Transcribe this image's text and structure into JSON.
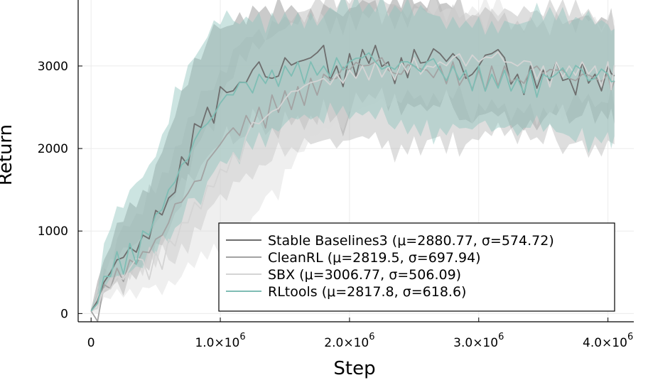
{
  "chart_data": {
    "type": "line",
    "xlabel": "Step",
    "ylabel": "Return",
    "x_ticks": [
      {
        "value": 0,
        "label": "0",
        "exp": ""
      },
      {
        "value": 1000000,
        "label": "1.0×10",
        "exp": "6"
      },
      {
        "value": 2000000,
        "label": "2.0×10",
        "exp": "6"
      },
      {
        "value": 3000000,
        "label": "3.0×10",
        "exp": "6"
      },
      {
        "value": 4000000,
        "label": "4.0×10",
        "exp": "6"
      }
    ],
    "y_ticks": [
      0,
      1000,
      2000,
      3000
    ],
    "xlim": [
      -100000,
      4200000
    ],
    "ylim": [
      -100,
      3800
    ],
    "grid": true,
    "legend_position": "bottom-right",
    "series": [
      {
        "name": "Stable Baselines3 (μ=2880.77, σ=574.72)",
        "color": "#6e6e6e",
        "band_color": "#8a8a8a",
        "x": [
          0,
          100000,
          200000,
          300000,
          400000,
          500000,
          600000,
          700000,
          800000,
          900000,
          1000000,
          1100000,
          1200000,
          1300000,
          1400000,
          1500000,
          1600000,
          1700000,
          1800000,
          1900000,
          2000000,
          2100000,
          2200000,
          2300000,
          2400000,
          2500000,
          2600000,
          2700000,
          2800000,
          2900000,
          3000000,
          3100000,
          3200000,
          3300000,
          3400000,
          3500000,
          3600000,
          3700000,
          3800000,
          3900000,
          4000000,
          4050000
        ],
        "values": [
          30,
          380,
          650,
          800,
          950,
          1250,
          1400,
          1900,
          2300,
          2500,
          2750,
          2700,
          2800,
          3050,
          2850,
          3100,
          3050,
          3100,
          3250,
          3000,
          3150,
          3200,
          3250,
          3050,
          3100,
          3200,
          3050,
          3150,
          3150,
          2850,
          3000,
          3150,
          3100,
          2900,
          3000,
          2950,
          3050,
          2850,
          3050,
          2900,
          3000,
          2880
        ],
        "band": [
          [
            20,
            50
          ],
          [
            250,
            650
          ],
          [
            400,
            1100
          ],
          [
            500,
            1350
          ],
          [
            600,
            1500
          ],
          [
            850,
            1800
          ],
          [
            1000,
            2200
          ],
          [
            1300,
            2700
          ],
          [
            1600,
            3100
          ],
          [
            1900,
            3300
          ],
          [
            2050,
            3450
          ],
          [
            2050,
            3500
          ],
          [
            2150,
            3500
          ],
          [
            2350,
            3650
          ],
          [
            2250,
            3600
          ],
          [
            2450,
            3650
          ],
          [
            2400,
            3650
          ],
          [
            2400,
            3700
          ],
          [
            2600,
            3750
          ],
          [
            2400,
            3650
          ],
          [
            2400,
            3700
          ],
          [
            2550,
            3800
          ],
          [
            2600,
            3800
          ],
          [
            2450,
            3700
          ],
          [
            2400,
            3700
          ],
          [
            2500,
            3750
          ],
          [
            2450,
            3700
          ],
          [
            2500,
            3750
          ],
          [
            2500,
            3700
          ],
          [
            2350,
            3550
          ],
          [
            2400,
            3600
          ],
          [
            2450,
            3650
          ],
          [
            2450,
            3650
          ],
          [
            2300,
            3550
          ],
          [
            2350,
            3600
          ],
          [
            2350,
            3550
          ],
          [
            2400,
            3650
          ],
          [
            2300,
            3550
          ],
          [
            2400,
            3600
          ],
          [
            2300,
            3500
          ],
          [
            2350,
            3550
          ],
          [
            2300,
            3450
          ]
        ]
      },
      {
        "name": "CleanRL (μ=2819.5, σ=697.94)",
        "color": "#a3a3a3",
        "band_color": "#b5b5b5",
        "x": [
          0,
          100000,
          200000,
          300000,
          400000,
          500000,
          600000,
          700000,
          800000,
          900000,
          1000000,
          1100000,
          1200000,
          1300000,
          1400000,
          1500000,
          1600000,
          1700000,
          1800000,
          1900000,
          2000000,
          2100000,
          2200000,
          2300000,
          2400000,
          2500000,
          2600000,
          2700000,
          2800000,
          2900000,
          3000000,
          3100000,
          3200000,
          3300000,
          3400000,
          3500000,
          3600000,
          3700000,
          3800000,
          3900000,
          4000000,
          4050000
        ],
        "values": [
          30,
          350,
          550,
          650,
          750,
          900,
          1100,
          1350,
          1600,
          1850,
          2050,
          2250,
          2400,
          2500,
          2650,
          2700,
          2750,
          2850,
          2900,
          2850,
          2950,
          3000,
          3050,
          2950,
          2900,
          3000,
          2950,
          3000,
          3050,
          2900,
          2950,
          3000,
          3000,
          2850,
          2950,
          2900,
          2950,
          2850,
          2900,
          2850,
          2900,
          2820
        ],
        "band": [
          [
            20,
            50
          ],
          [
            250,
            550
          ],
          [
            380,
            900
          ],
          [
            400,
            1050
          ],
          [
            450,
            1200
          ],
          [
            550,
            1450
          ],
          [
            650,
            1700
          ],
          [
            850,
            2050
          ],
          [
            1050,
            2400
          ],
          [
            1250,
            2700
          ],
          [
            1450,
            2950
          ],
          [
            1600,
            3200
          ],
          [
            1700,
            3350
          ],
          [
            1800,
            3450
          ],
          [
            1850,
            3550
          ],
          [
            1900,
            3600
          ],
          [
            1950,
            3650
          ],
          [
            2050,
            3700
          ],
          [
            2100,
            3750
          ],
          [
            2000,
            3700
          ],
          [
            2100,
            3750
          ],
          [
            2150,
            3800
          ],
          [
            2200,
            3800
          ],
          [
            2100,
            3750
          ],
          [
            2050,
            3700
          ],
          [
            2150,
            3750
          ],
          [
            2100,
            3700
          ],
          [
            2150,
            3750
          ],
          [
            2200,
            3750
          ],
          [
            2050,
            3650
          ],
          [
            2100,
            3650
          ],
          [
            2150,
            3700
          ],
          [
            2150,
            3700
          ],
          [
            2050,
            3600
          ],
          [
            2100,
            3650
          ],
          [
            2050,
            3600
          ],
          [
            2100,
            3650
          ],
          [
            2050,
            3600
          ],
          [
            2100,
            3600
          ],
          [
            2050,
            3550
          ],
          [
            2100,
            3550
          ],
          [
            2050,
            3500
          ]
        ]
      },
      {
        "name": "SBX (μ=3006.77, σ=506.09)",
        "color": "#d4d4d4",
        "band_color": "#dcdcdc",
        "x": [
          0,
          100000,
          200000,
          300000,
          400000,
          500000,
          600000,
          700000,
          800000,
          900000,
          1000000,
          1100000,
          1200000,
          1300000,
          1400000,
          1500000,
          1600000,
          1700000,
          1800000,
          1900000,
          2000000,
          2100000,
          2200000,
          2300000,
          2400000,
          2500000,
          2600000,
          2700000,
          2800000,
          2900000,
          3000000,
          3100000,
          3200000,
          3300000,
          3400000,
          3500000,
          3600000,
          3700000,
          3800000,
          3900000,
          4000000,
          4050000
        ],
        "values": [
          30,
          300,
          450,
          550,
          650,
          750,
          900,
          1100,
          1350,
          1550,
          1750,
          1950,
          2150,
          2300,
          2450,
          2600,
          2700,
          2800,
          2850,
          2900,
          2950,
          3000,
          3050,
          3000,
          3050,
          3100,
          3000,
          3050,
          3100,
          3000,
          3050,
          3100,
          3050,
          3000,
          3050,
          3000,
          3050,
          3000,
          3050,
          3000,
          3050,
          3010
        ],
        "band": [
          [
            20,
            50
          ],
          [
            200,
            450
          ],
          [
            300,
            650
          ],
          [
            300,
            800
          ],
          [
            320,
            950
          ],
          [
            350,
            1100
          ],
          [
            400,
            1350
          ],
          [
            450,
            1650
          ],
          [
            550,
            2000
          ],
          [
            650,
            2300
          ],
          [
            700,
            2600
          ],
          [
            850,
            2850
          ],
          [
            1000,
            3050
          ],
          [
            1250,
            3200
          ],
          [
            1500,
            3350
          ],
          [
            1750,
            3450
          ],
          [
            1950,
            3500
          ],
          [
            2150,
            3550
          ],
          [
            2250,
            3600
          ],
          [
            2350,
            3600
          ],
          [
            2450,
            3650
          ],
          [
            2500,
            3650
          ],
          [
            2550,
            3700
          ],
          [
            2500,
            3650
          ],
          [
            2550,
            3650
          ],
          [
            2600,
            3700
          ],
          [
            2500,
            3650
          ],
          [
            2550,
            3650
          ],
          [
            2600,
            3700
          ],
          [
            2500,
            3600
          ],
          [
            2550,
            3650
          ],
          [
            2600,
            3650
          ],
          [
            2550,
            3650
          ],
          [
            2500,
            3600
          ],
          [
            2550,
            3650
          ],
          [
            2500,
            3600
          ],
          [
            2550,
            3650
          ],
          [
            2500,
            3600
          ],
          [
            2550,
            3650
          ],
          [
            2500,
            3600
          ],
          [
            2550,
            3600
          ],
          [
            2500,
            3550
          ]
        ]
      },
      {
        "name": "RLtools (μ=2817.8, σ=618.6)",
        "color": "#7fbdb4",
        "band_color": "#8fc4bd",
        "x": [
          0,
          100000,
          200000,
          300000,
          400000,
          500000,
          600000,
          700000,
          800000,
          900000,
          1000000,
          1100000,
          1200000,
          1300000,
          1400000,
          1500000,
          1600000,
          1700000,
          1800000,
          1900000,
          2000000,
          2100000,
          2200000,
          2300000,
          2400000,
          2500000,
          2600000,
          2700000,
          2800000,
          2900000,
          3000000,
          3100000,
          3200000,
          3300000,
          3400000,
          3500000,
          3600000,
          3700000,
          3800000,
          3900000,
          4000000,
          4050000
        ],
        "values": [
          30,
          450,
          750,
          850,
          1000,
          1200,
          1500,
          1800,
          2100,
          2300,
          2550,
          2650,
          2800,
          2900,
          2950,
          3000,
          3050,
          3050,
          3000,
          3100,
          3050,
          3100,
          3050,
          3000,
          3050,
          3000,
          3050,
          2950,
          3000,
          2950,
          3000,
          2900,
          2950,
          2850,
          2950,
          2900,
          2900,
          2850,
          2950,
          2850,
          2900,
          2818
        ],
        "band": [
          [
            20,
            60
          ],
          [
            300,
            850
          ],
          [
            450,
            1300
          ],
          [
            500,
            1500
          ],
          [
            550,
            1650
          ],
          [
            700,
            1900
          ],
          [
            850,
            2300
          ],
          [
            1100,
            2700
          ],
          [
            1400,
            3100
          ],
          [
            1600,
            3350
          ],
          [
            1850,
            3500
          ],
          [
            1950,
            3550
          ],
          [
            2100,
            3600
          ],
          [
            2200,
            3650
          ],
          [
            2250,
            3650
          ],
          [
            2300,
            3650
          ],
          [
            2350,
            3650
          ],
          [
            2350,
            3650
          ],
          [
            2300,
            3600
          ],
          [
            2400,
            3650
          ],
          [
            2350,
            3650
          ],
          [
            2400,
            3650
          ],
          [
            2350,
            3650
          ],
          [
            2300,
            3600
          ],
          [
            2350,
            3650
          ],
          [
            2300,
            3600
          ],
          [
            2350,
            3650
          ],
          [
            2250,
            3600
          ],
          [
            2300,
            3600
          ],
          [
            2250,
            3550
          ],
          [
            2300,
            3600
          ],
          [
            2200,
            3550
          ],
          [
            2250,
            3550
          ],
          [
            2150,
            3500
          ],
          [
            2250,
            3550
          ],
          [
            2200,
            3550
          ],
          [
            2200,
            3550
          ],
          [
            2150,
            3500
          ],
          [
            2250,
            3550
          ],
          [
            2150,
            3500
          ],
          [
            2200,
            3500
          ],
          [
            2150,
            3450
          ]
        ]
      }
    ]
  }
}
